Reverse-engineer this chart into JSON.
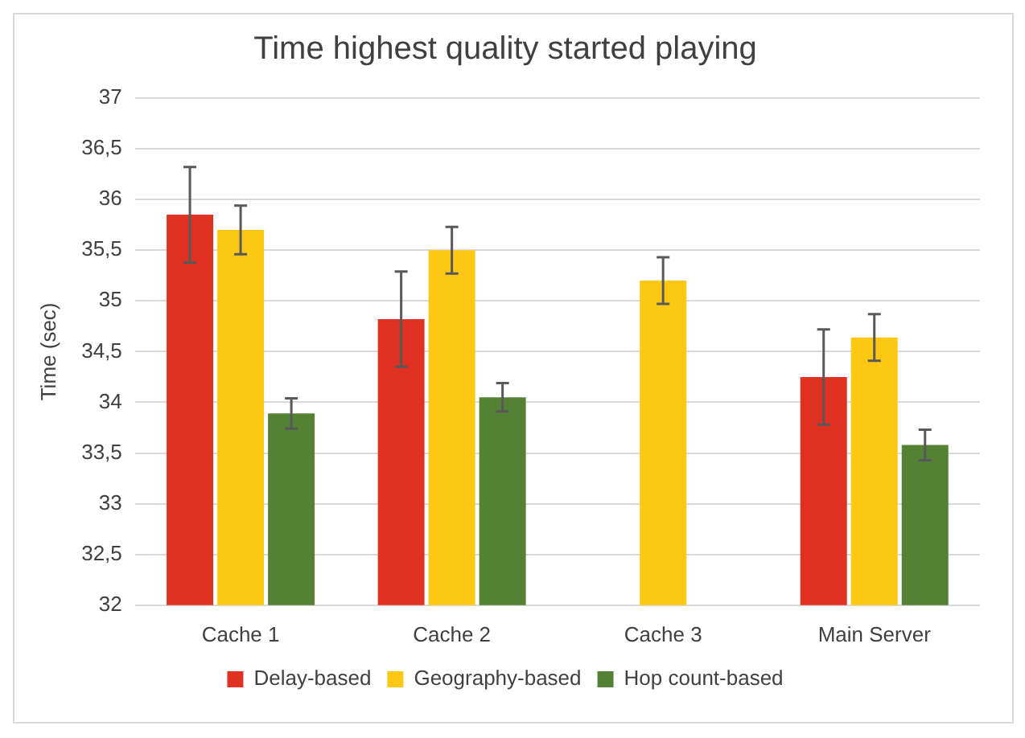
{
  "chart_data": {
    "type": "bar",
    "title": "Time highest quality started playing",
    "ylabel": "Time (sec)",
    "categories": [
      "Cache 1",
      "Cache 2",
      "Cache 3",
      "Main Server"
    ],
    "series": [
      {
        "name": "Delay-based",
        "color": "#e03222",
        "values": [
          35.85,
          34.82,
          null,
          34.25
        ],
        "errors": [
          0.47,
          0.47,
          null,
          0.47
        ]
      },
      {
        "name": "Geography-based",
        "color": "#fcc814",
        "values": [
          35.7,
          35.5,
          35.2,
          34.64
        ],
        "errors": [
          0.24,
          0.23,
          0.23,
          0.23
        ]
      },
      {
        "name": "Hop count-based",
        "color": "#548235",
        "values": [
          33.89,
          34.05,
          null,
          33.58
        ],
        "errors": [
          0.15,
          0.14,
          null,
          0.15
        ]
      }
    ],
    "ylim": [
      32,
      37
    ],
    "yticks": [
      32,
      {
        "value": 32.5,
        "label": "32,5"
      },
      33,
      {
        "value": 33.5,
        "label": "33,5"
      },
      34,
      {
        "value": 34.5,
        "label": "34,5"
      },
      35,
      {
        "value": 35.5,
        "label": "35,5"
      },
      36,
      {
        "value": 36.5,
        "label": "36,5"
      },
      37
    ],
    "grid": "y",
    "legend": "bottom"
  }
}
